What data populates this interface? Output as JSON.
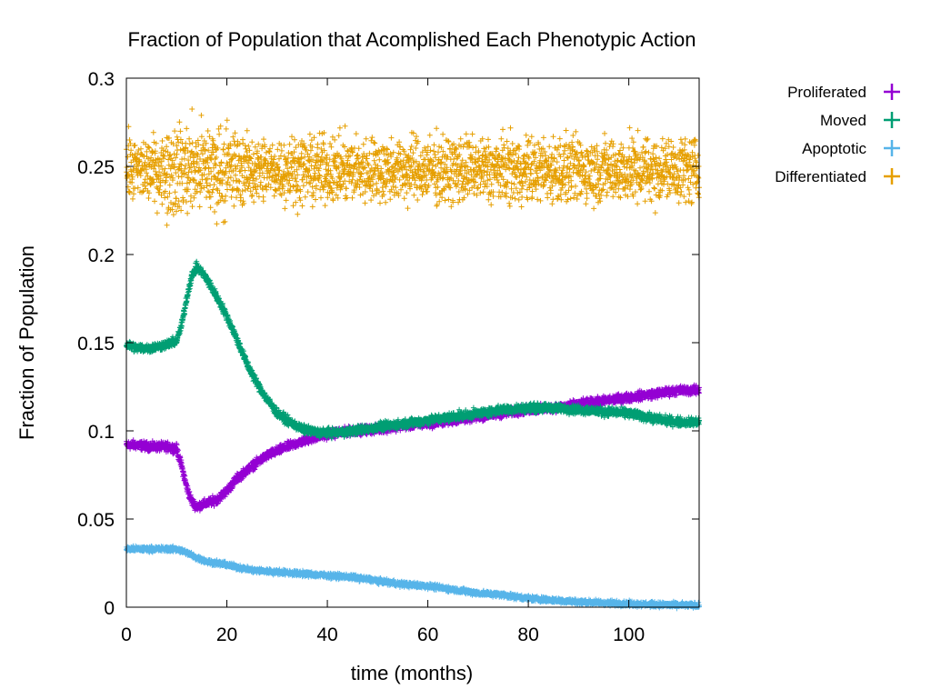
{
  "chart_data": {
    "type": "scatter",
    "title": "Fraction of Population that Acomplished Each Phenotypic Action",
    "xlabel": "time (months)",
    "ylabel": "Fraction of Population",
    "xlim": [
      0,
      114
    ],
    "ylim": [
      0,
      0.3
    ],
    "x_ticks": [
      0,
      20,
      40,
      60,
      80,
      100
    ],
    "x_tick_labels": [
      "0",
      "20",
      "40",
      "60",
      "80",
      "100"
    ],
    "y_ticks": [
      0,
      0.05,
      0.1,
      0.15,
      0.2,
      0.25,
      0.3
    ],
    "y_tick_labels": [
      "0",
      "0.05",
      "0.1",
      "0.15",
      "0.2",
      "0.25",
      "0.3"
    ],
    "grid": false,
    "legend_position": "outside-top-right",
    "marker": "plus",
    "series": [
      {
        "name": "Proliferated",
        "color": "#9400d3",
        "noise": 0.0012,
        "points": [
          [
            0,
            0.092
          ],
          [
            2,
            0.092
          ],
          [
            5,
            0.091
          ],
          [
            8,
            0.091
          ],
          [
            10,
            0.09
          ],
          [
            11,
            0.08
          ],
          [
            12,
            0.068
          ],
          [
            13,
            0.06
          ],
          [
            14,
            0.057
          ],
          [
            16,
            0.059
          ],
          [
            18,
            0.061
          ],
          [
            20,
            0.066
          ],
          [
            22,
            0.073
          ],
          [
            25,
            0.08
          ],
          [
            28,
            0.086
          ],
          [
            32,
            0.091
          ],
          [
            36,
            0.095
          ],
          [
            40,
            0.098
          ],
          [
            45,
            0.1
          ],
          [
            50,
            0.101
          ],
          [
            55,
            0.103
          ],
          [
            60,
            0.104
          ],
          [
            65,
            0.106
          ],
          [
            70,
            0.108
          ],
          [
            75,
            0.11
          ],
          [
            80,
            0.112
          ],
          [
            85,
            0.113
          ],
          [
            90,
            0.115
          ],
          [
            95,
            0.117
          ],
          [
            100,
            0.119
          ],
          [
            105,
            0.121
          ],
          [
            110,
            0.123
          ],
          [
            114,
            0.123
          ]
        ]
      },
      {
        "name": "Moved",
        "color": "#009e73",
        "noise": 0.0012,
        "points": [
          [
            0,
            0.149
          ],
          [
            2,
            0.147
          ],
          [
            5,
            0.147
          ],
          [
            8,
            0.149
          ],
          [
            10,
            0.151
          ],
          [
            11,
            0.16
          ],
          [
            12,
            0.175
          ],
          [
            13,
            0.188
          ],
          [
            14,
            0.193
          ],
          [
            15,
            0.19
          ],
          [
            16,
            0.186
          ],
          [
            18,
            0.176
          ],
          [
            20,
            0.165
          ],
          [
            22,
            0.152
          ],
          [
            24,
            0.138
          ],
          [
            26,
            0.127
          ],
          [
            28,
            0.118
          ],
          [
            30,
            0.11
          ],
          [
            32,
            0.106
          ],
          [
            35,
            0.101
          ],
          [
            38,
            0.099
          ],
          [
            42,
            0.099
          ],
          [
            45,
            0.1
          ],
          [
            50,
            0.102
          ],
          [
            55,
            0.104
          ],
          [
            60,
            0.106
          ],
          [
            65,
            0.108
          ],
          [
            70,
            0.11
          ],
          [
            75,
            0.112
          ],
          [
            80,
            0.113
          ],
          [
            85,
            0.113
          ],
          [
            90,
            0.112
          ],
          [
            95,
            0.111
          ],
          [
            100,
            0.11
          ],
          [
            105,
            0.107
          ],
          [
            110,
            0.105
          ],
          [
            114,
            0.105
          ]
        ]
      },
      {
        "name": "Apoptotic",
        "color": "#56b4e9",
        "noise": 0.0007,
        "points": [
          [
            0,
            0.033
          ],
          [
            5,
            0.033
          ],
          [
            10,
            0.033
          ],
          [
            12,
            0.031
          ],
          [
            14,
            0.028
          ],
          [
            16,
            0.026
          ],
          [
            20,
            0.024
          ],
          [
            25,
            0.021
          ],
          [
            30,
            0.02
          ],
          [
            35,
            0.019
          ],
          [
            40,
            0.018
          ],
          [
            45,
            0.017
          ],
          [
            50,
            0.015
          ],
          [
            55,
            0.013
          ],
          [
            60,
            0.012
          ],
          [
            65,
            0.01
          ],
          [
            70,
            0.008
          ],
          [
            75,
            0.007
          ],
          [
            80,
            0.005
          ],
          [
            85,
            0.004
          ],
          [
            90,
            0.003
          ],
          [
            95,
            0.0025
          ],
          [
            100,
            0.002
          ],
          [
            105,
            0.0015
          ],
          [
            110,
            0.0012
          ],
          [
            114,
            0.001
          ]
        ]
      },
      {
        "name": "Differentiated",
        "color": "#e69f00",
        "noise": 0.009,
        "points": [
          [
            0,
            0.248
          ],
          [
            10,
            0.248
          ],
          [
            14,
            0.249
          ],
          [
            20,
            0.248
          ],
          [
            40,
            0.248
          ],
          [
            60,
            0.248
          ],
          [
            80,
            0.248
          ],
          [
            100,
            0.248
          ],
          [
            114,
            0.248
          ]
        ]
      }
    ]
  }
}
